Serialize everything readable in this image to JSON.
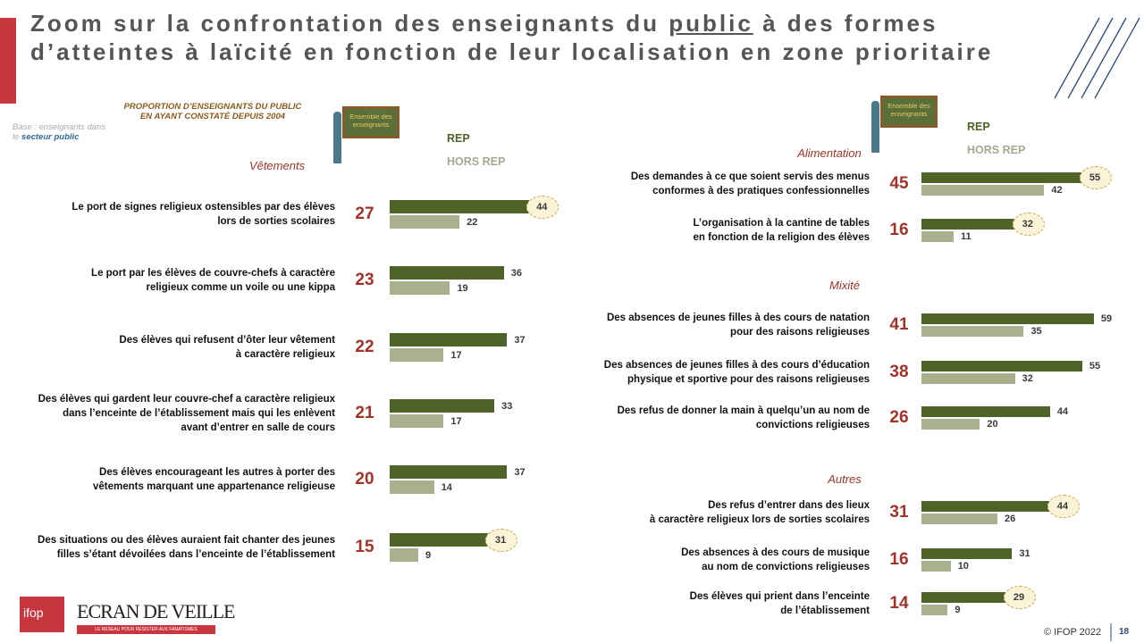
{
  "title": [
    "Zoom sur la confrontation des enseignants du ",
    "public",
    " à des formes d’atteintes à laïcité en fonction de leur localisation en zone prioritaire"
  ],
  "subtitle": "PROPORTION D’ENSEIGNANTS DU PUBLIC\nEN AYANT CONSTATÉ DEPUIS 2004",
  "base": [
    "Base : enseignants dans\nle ",
    "secteur public"
  ],
  "footer": {
    "copyright": "© IFOP 2022",
    "page": "18",
    "logo_ifop": "ifop",
    "logo_ecran": "ECRAN DE VEILLE",
    "logo_tagline": "LE RÉSEAU POUR RÉSISTER AUX FANATISMES"
  },
  "chart_data": [
    {
      "type": "bar",
      "title": "Vêtements",
      "categories": [
        "Le port de signes religieux ostensibles par des élèves\nlors de sorties scolaires",
        "Le port par les élèves de couvre-chefs à caractère\nreligieux comme un voile ou une kippa",
        "Des élèves qui refusent d’ôter leur vêtement\nà caractère religieux",
        "Des élèves qui gardent leur couvre-chef a caractère religieux\ndans l’enceinte de l’établissement mais qui les enlèvent\navant d’entrer en salle de cours",
        "Des élèves encourageant les autres à porter des\nvêtements marquant une appartenance religieuse",
        "Des situations ou des élèves auraient fait chanter des jeunes\nfilles  s’étant dévoilées dans l’enceinte de l’établissement"
      ],
      "series": [
        {
          "name": "Ensemble des enseignants",
          "color": "#a33228",
          "values": [
            27,
            23,
            22,
            21,
            20,
            15
          ]
        },
        {
          "name": "REP",
          "color": "#4f6228",
          "values": [
            44,
            36,
            37,
            33,
            37,
            31
          ],
          "circled": [
            true,
            false,
            false,
            false,
            false,
            true
          ]
        },
        {
          "name": "HORS REP",
          "color": "#a8b08e",
          "values": [
            22,
            19,
            17,
            17,
            14,
            9
          ]
        }
      ]
    },
    {
      "type": "bar",
      "title": "Alimentation",
      "categories": [
        "Des demandes à ce que soient servis des menus\nconformes à des pratiques confessionnelles",
        "L’organisation à la cantine de tables\nen fonction de la religion des élèves"
      ],
      "series": [
        {
          "name": "Ensemble des enseignants",
          "color": "#a33228",
          "values": [
            45,
            16
          ]
        },
        {
          "name": "REP",
          "color": "#4f6228",
          "values": [
            55,
            32
          ],
          "circled": [
            true,
            true
          ]
        },
        {
          "name": "HORS REP",
          "color": "#a8b08e",
          "values": [
            42,
            11
          ]
        }
      ]
    },
    {
      "type": "bar",
      "title": "Mixité",
      "categories": [
        "Des absences  de jeunes filles à des cours de natation\npour des raisons religieuses",
        "Des absences  de jeunes filles à des cours d’éducation\nphysique et sportive pour des raisons religieuses",
        "Des refus de donner la main à quelqu’un au nom de\nconvictions  religieuses"
      ],
      "series": [
        {
          "name": "Ensemble des enseignants",
          "color": "#a33228",
          "values": [
            41,
            38,
            26
          ]
        },
        {
          "name": "REP",
          "color": "#4f6228",
          "values": [
            59,
            55,
            44
          ],
          "circled": [
            false,
            false,
            false
          ]
        },
        {
          "name": "HORS REP",
          "color": "#a8b08e",
          "values": [
            35,
            32,
            20
          ]
        }
      ]
    },
    {
      "type": "bar",
      "title": "Autres",
      "categories": [
        "Des refus d’entrer dans des lieux\nà caractère religieux lors de sorties scolaires",
        "Des absences à des cours de musique\nau nom de convictions religieuses",
        "Des élèves qui prient dans l’enceinte\nde l’établissement"
      ],
      "series": [
        {
          "name": "Ensemble des enseignants",
          "color": "#a33228",
          "values": [
            31,
            16,
            14
          ]
        },
        {
          "name": "REP",
          "color": "#4f6228",
          "values": [
            44,
            31,
            29
          ],
          "circled": [
            true,
            false,
            true
          ]
        },
        {
          "name": "HORS REP",
          "color": "#a8b08e",
          "values": [
            26,
            10,
            9
          ]
        }
      ]
    }
  ]
}
